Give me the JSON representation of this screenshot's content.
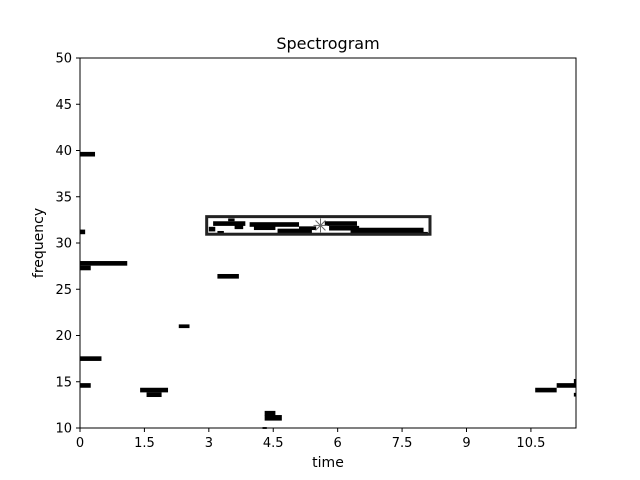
{
  "chart_data": {
    "type": "heatmap",
    "title": "Spectrogram",
    "xlabel": "time",
    "ylabel": "frequency",
    "xlim": [
      0,
      11.55
    ],
    "ylim": [
      10,
      50
    ],
    "xticks": [
      0,
      1.5,
      3,
      4.5,
      6,
      7.5,
      9,
      10.5
    ],
    "xtick_labels": [
      "0",
      "1.5",
      "3",
      "4.5",
      "6",
      "7.5",
      "9",
      "10.5"
    ],
    "yticks": [
      10,
      15,
      20,
      25,
      30,
      35,
      40,
      45,
      50
    ],
    "ytick_labels": [
      "10",
      "15",
      "20",
      "25",
      "30",
      "35",
      "40",
      "45",
      "50"
    ],
    "grid": false,
    "mark_color": "#000000",
    "segments": [
      {
        "x0": 0.0,
        "x1": 0.12,
        "y": 31.2,
        "h": 0.5
      },
      {
        "x0": 0.0,
        "x1": 0.35,
        "y": 39.6,
        "h": 0.5
      },
      {
        "x0": 0.0,
        "x1": 1.1,
        "y": 27.8,
        "h": 0.5
      },
      {
        "x0": 0.0,
        "x1": 0.25,
        "y": 27.3,
        "h": 0.5
      },
      {
        "x0": 0.0,
        "x1": 0.5,
        "y": 17.5,
        "h": 0.5
      },
      {
        "x0": 0.0,
        "x1": 0.25,
        "y": 14.6,
        "h": 0.5
      },
      {
        "x0": 1.4,
        "x1": 2.05,
        "y": 14.1,
        "h": 0.5
      },
      {
        "x0": 1.55,
        "x1": 1.9,
        "y": 13.6,
        "h": 0.5
      },
      {
        "x0": 2.3,
        "x1": 2.55,
        "y": 21.0,
        "h": 0.4
      },
      {
        "x0": 3.2,
        "x1": 3.7,
        "y": 26.4,
        "h": 0.5
      },
      {
        "x0": 4.3,
        "x1": 4.55,
        "y": 11.6,
        "h": 0.5
      },
      {
        "x0": 4.3,
        "x1": 4.7,
        "y": 11.1,
        "h": 0.6
      },
      {
        "x0": 4.25,
        "x1": 4.35,
        "y": 10.0,
        "h": 0.2
      },
      {
        "x0": 3.1,
        "x1": 3.85,
        "y": 32.1,
        "h": 0.5
      },
      {
        "x0": 3.0,
        "x1": 3.15,
        "y": 31.5,
        "h": 0.5
      },
      {
        "x0": 3.2,
        "x1": 3.35,
        "y": 31.1,
        "h": 0.4
      },
      {
        "x0": 3.45,
        "x1": 3.6,
        "y": 32.5,
        "h": 0.3
      },
      {
        "x0": 3.6,
        "x1": 3.8,
        "y": 31.7,
        "h": 0.4
      },
      {
        "x0": 3.95,
        "x1": 5.1,
        "y": 32.0,
        "h": 0.5
      },
      {
        "x0": 4.05,
        "x1": 4.55,
        "y": 31.6,
        "h": 0.4
      },
      {
        "x0": 4.6,
        "x1": 5.4,
        "y": 31.3,
        "h": 0.5
      },
      {
        "x0": 5.1,
        "x1": 5.5,
        "y": 31.6,
        "h": 0.4
      },
      {
        "x0": 5.7,
        "x1": 6.45,
        "y": 32.1,
        "h": 0.5
      },
      {
        "x0": 5.8,
        "x1": 6.5,
        "y": 31.6,
        "h": 0.5
      },
      {
        "x0": 6.3,
        "x1": 8.0,
        "y": 31.4,
        "h": 0.5
      },
      {
        "x0": 6.3,
        "x1": 8.1,
        "y": 31.0,
        "h": 0.4
      },
      {
        "x0": 10.6,
        "x1": 11.1,
        "y": 14.1,
        "h": 0.5
      },
      {
        "x0": 11.1,
        "x1": 11.55,
        "y": 14.6,
        "h": 0.5
      },
      {
        "x0": 11.5,
        "x1": 11.55,
        "y": 15.0,
        "h": 0.6
      },
      {
        "x0": 11.5,
        "x1": 11.55,
        "y": 13.6,
        "h": 0.4
      }
    ],
    "annotation_box": {
      "x0": 2.95,
      "x1": 8.15,
      "y0": 30.95,
      "y1": 32.85
    },
    "annotation_marker": {
      "x": 5.6,
      "y": 31.9
    }
  }
}
